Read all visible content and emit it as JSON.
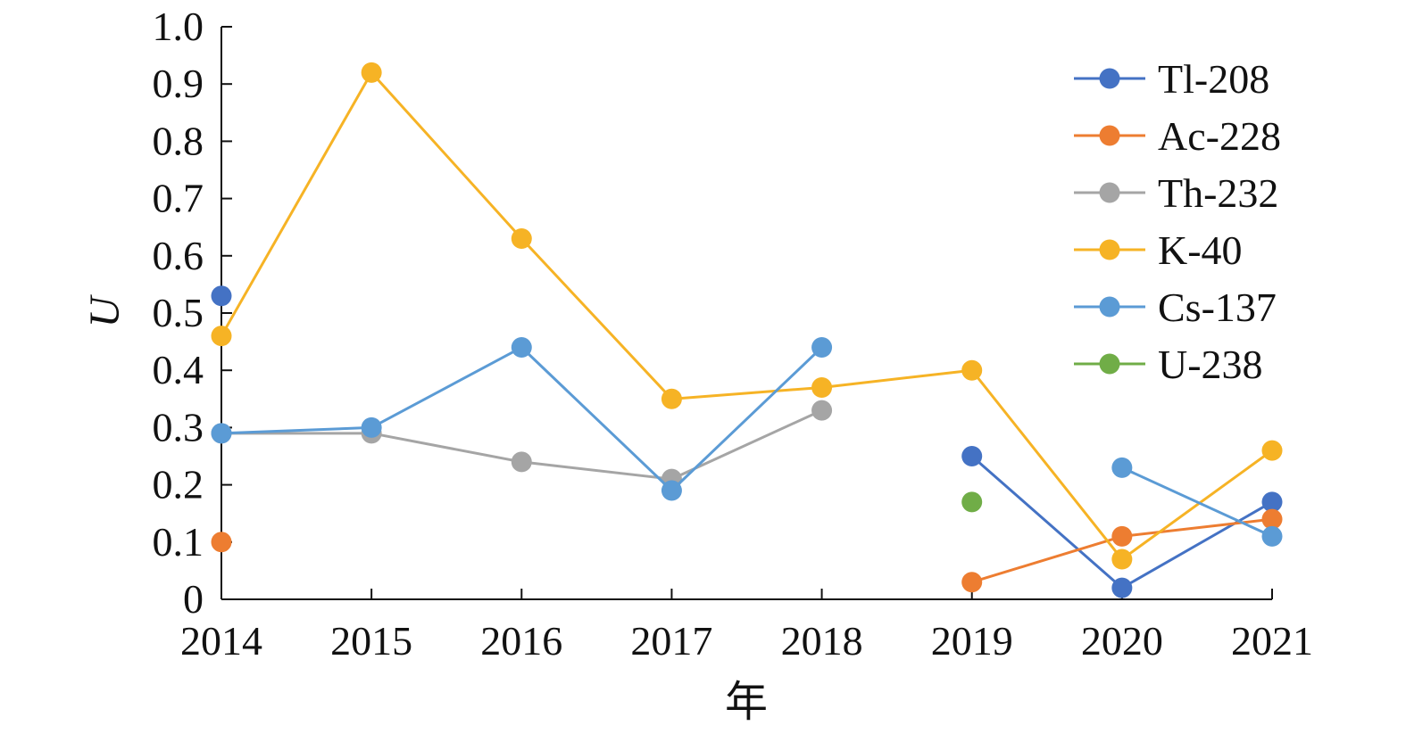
{
  "chart_data": {
    "type": "line",
    "xlabel": "年",
    "ylabel": "U",
    "categories": [
      "2014",
      "2015",
      "2016",
      "2017",
      "2018",
      "2019",
      "2020",
      "2021"
    ],
    "ylim": [
      0,
      1.0
    ],
    "yticks": [
      "0",
      "0.1",
      "0.2",
      "0.3",
      "0.4",
      "0.5",
      "0.6",
      "0.7",
      "0.8",
      "0.9",
      "1.0"
    ],
    "grid": false,
    "legend_position": "top-right",
    "series": [
      {
        "name": "Tl-208",
        "color": "#4472C4",
        "values": [
          0.53,
          null,
          null,
          null,
          null,
          0.25,
          0.02,
          0.17
        ]
      },
      {
        "name": "Ac-228",
        "color": "#ED7D31",
        "values": [
          0.1,
          null,
          null,
          null,
          null,
          0.03,
          0.11,
          0.14
        ]
      },
      {
        "name": "Th-232",
        "color": "#A5A5A5",
        "values": [
          0.29,
          0.29,
          0.24,
          0.21,
          0.33,
          null,
          null,
          null
        ]
      },
      {
        "name": "K-40",
        "color": "#F6B325",
        "values": [
          0.46,
          0.92,
          0.63,
          0.35,
          0.37,
          0.4,
          0.07,
          0.26
        ]
      },
      {
        "name": "Cs-137",
        "color": "#5B9BD5",
        "values": [
          0.29,
          0.3,
          0.44,
          0.19,
          0.44,
          null,
          0.23,
          0.11
        ]
      },
      {
        "name": "U-238",
        "color": "#70AD47",
        "values": [
          null,
          null,
          null,
          null,
          null,
          0.17,
          null,
          null
        ]
      }
    ]
  }
}
